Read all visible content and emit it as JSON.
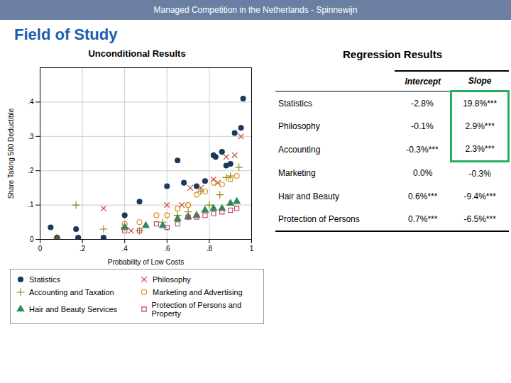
{
  "title": "Field of Study",
  "annotations": [
    "Managed Competition in the Netherlands - Spinnewijn"
  ],
  "chart_data": [
    {
      "type": "scatter",
      "title": "Unconditional Results",
      "xlabel": "Probability of Low Costs",
      "ylabel": "Share Taking 500 Deductible",
      "xlim": [
        0,
        1.0
      ],
      "ylim": [
        0,
        0.5
      ],
      "xticks": [
        0,
        {
          "value": 0.2,
          "label": ".2"
        },
        {
          "value": 0.4,
          "label": ".4"
        },
        {
          "value": 0.6,
          "label": ".6"
        },
        {
          "value": 0.8,
          "label": ".8"
        },
        1
      ],
      "yticks": [
        0,
        {
          "value": 0.1,
          "label": ".1"
        },
        {
          "value": 0.2,
          "label": ".2"
        },
        {
          "value": 0.3,
          "label": ".3"
        },
        {
          "value": 0.4,
          "label": ".4"
        }
      ],
      "grid": true,
      "legend": "bottom",
      "series": [
        {
          "name": "Statistics",
          "color": "#1a3a5c",
          "marker": "circle",
          "x": [
            0.05,
            0.08,
            0.17,
            0.18,
            0.3,
            0.4,
            0.47,
            0.6,
            0.65,
            0.68,
            0.74,
            0.78,
            0.82,
            0.83,
            0.86,
            0.88,
            0.9,
            0.92,
            0.95,
            0.96
          ],
          "values": [
            0.035,
            0.005,
            0.03,
            0.005,
            0.005,
            0.07,
            0.11,
            0.155,
            0.23,
            0.165,
            0.155,
            0.17,
            0.245,
            0.24,
            0.255,
            0.215,
            0.22,
            0.31,
            0.325,
            0.41
          ]
        },
        {
          "name": "Philosophy",
          "color": "#c0392b",
          "marker": "times",
          "x": [
            0.3,
            0.43,
            0.6,
            0.67,
            0.71,
            0.76,
            0.82,
            0.84,
            0.88,
            0.92,
            0.95
          ],
          "values": [
            0.09,
            0.025,
            0.1,
            0.1,
            0.15,
            0.15,
            0.175,
            0.165,
            0.24,
            0.245,
            0.3
          ]
        },
        {
          "name": "Accounting and Taxation",
          "color": "#8B8000",
          "marker": "plus",
          "x": [
            0.08,
            0.17,
            0.3,
            0.4,
            0.47,
            0.58,
            0.65,
            0.7,
            0.76,
            0.8,
            0.85,
            0.88,
            0.9,
            0.94
          ],
          "values": [
            0.005,
            0.1,
            0.03,
            0.035,
            0.025,
            0.05,
            0.07,
            0.08,
            0.14,
            0.1,
            0.13,
            0.18,
            0.185,
            0.21
          ]
        },
        {
          "name": "Marketing and Advertising",
          "color": "#d4870a",
          "marker": "circle-open",
          "x": [
            0.4,
            0.47,
            0.55,
            0.6,
            0.65,
            0.7,
            0.74,
            0.78,
            0.82,
            0.86,
            0.9,
            0.93
          ],
          "values": [
            0.045,
            0.05,
            0.07,
            0.07,
            0.09,
            0.1,
            0.13,
            0.14,
            0.165,
            0.16,
            0.175,
            0.185
          ]
        },
        {
          "name": "Hair and Beauty Services",
          "color": "#2e8b57",
          "marker": "triangle",
          "x": [
            0.4,
            0.5,
            0.58,
            0.65,
            0.7,
            0.74,
            0.78,
            0.82,
            0.86,
            0.9,
            0.93
          ],
          "values": [
            0.035,
            0.04,
            0.04,
            0.06,
            0.065,
            0.07,
            0.085,
            0.09,
            0.09,
            0.105,
            0.11
          ]
        },
        {
          "name": "Protection of Persons and Property",
          "color": "#c04070",
          "marker": "square-open",
          "x": [
            0.4,
            0.47,
            0.55,
            0.6,
            0.65,
            0.7,
            0.74,
            0.78,
            0.82,
            0.86,
            0.9,
            0.93
          ],
          "values": [
            0.025,
            0.025,
            0.045,
            0.035,
            0.045,
            0.065,
            0.065,
            0.07,
            0.075,
            0.08,
            0.085,
            0.09
          ]
        }
      ]
    },
    {
      "type": "table",
      "title": "Regression Results",
      "columns": [
        "Intercept",
        "Slope"
      ],
      "color": "#27ae60",
      "rows": [
        {
          "label": "Statistics",
          "intercept": "-2.8%",
          "slope": "19.8%***",
          "highlight": true
        },
        {
          "label": "Philosophy",
          "intercept": "-0.1%",
          "slope": "2.9%***",
          "highlight": true
        },
        {
          "label": "Accounting",
          "intercept": "-0.3%***",
          "slope": "2.3%***",
          "highlight": true
        },
        {
          "label": "Marketing",
          "intercept": "0.0%",
          "slope": "-0.3%",
          "highlight": false
        },
        {
          "label": "Hair and Beauty",
          "intercept": "0.6%***",
          "slope": "-9.4%***",
          "highlight": false
        },
        {
          "label": "Protection of Persons",
          "intercept": "0.7%***",
          "slope": "-6.5%***",
          "highlight": false
        }
      ]
    }
  ]
}
